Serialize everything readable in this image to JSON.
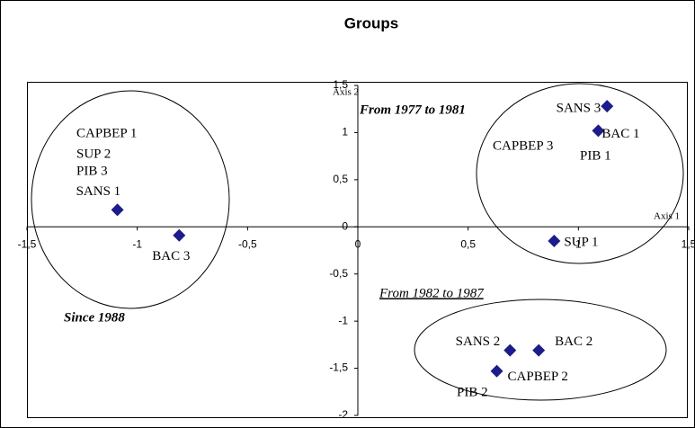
{
  "chart_data": {
    "type": "scatter",
    "title": "Groups",
    "x_axis_label": "Axis 1",
    "y_axis_label": "Axis 2",
    "xlim": [
      -1.5,
      1.5
    ],
    "ylim": [
      -2,
      1.5
    ],
    "xticks": [
      {
        "value": -1.5,
        "label": "-1,5"
      },
      -1,
      {
        "value": -0.5,
        "label": "-0,5"
      },
      0,
      {
        "value": 0.5,
        "label": "0,5"
      },
      1,
      {
        "value": 1.5,
        "label": "1,5"
      }
    ],
    "yticks": [
      {
        "value": 1.5,
        "label": "1,5"
      },
      1,
      {
        "value": 0.5,
        "label": "0,5"
      },
      0,
      {
        "value": -0.5,
        "label": "-0,5"
      },
      -1,
      {
        "value": -1.5,
        "label": "-1,5"
      },
      -2
    ],
    "grid": false,
    "series": [
      {
        "color": "#1c1c8a",
        "x": [
          1.13,
          1.09,
          0.89,
          -1.09,
          -0.81,
          0.69,
          0.82,
          0.63
        ],
        "values": [
          1.28,
          1.02,
          -0.15,
          0.18,
          -0.09,
          -1.31,
          -1.31,
          -1.53
        ],
        "labels": [
          "SANS 3",
          "BAC 1",
          "SUP 1",
          "SANS 1",
          "BAC 3",
          "SANS 2",
          "BAC 2",
          "CAPBEP 2"
        ]
      }
    ],
    "annotations": [
      "CAPBEP 1",
      "SUP 2",
      "PIB 3",
      "CAPBEP 3",
      "PIB 1",
      "PIB 2"
    ],
    "group_labels": [
      "From 1977 to 1981",
      "From 1982 to 1987",
      "Since 1988"
    ]
  }
}
